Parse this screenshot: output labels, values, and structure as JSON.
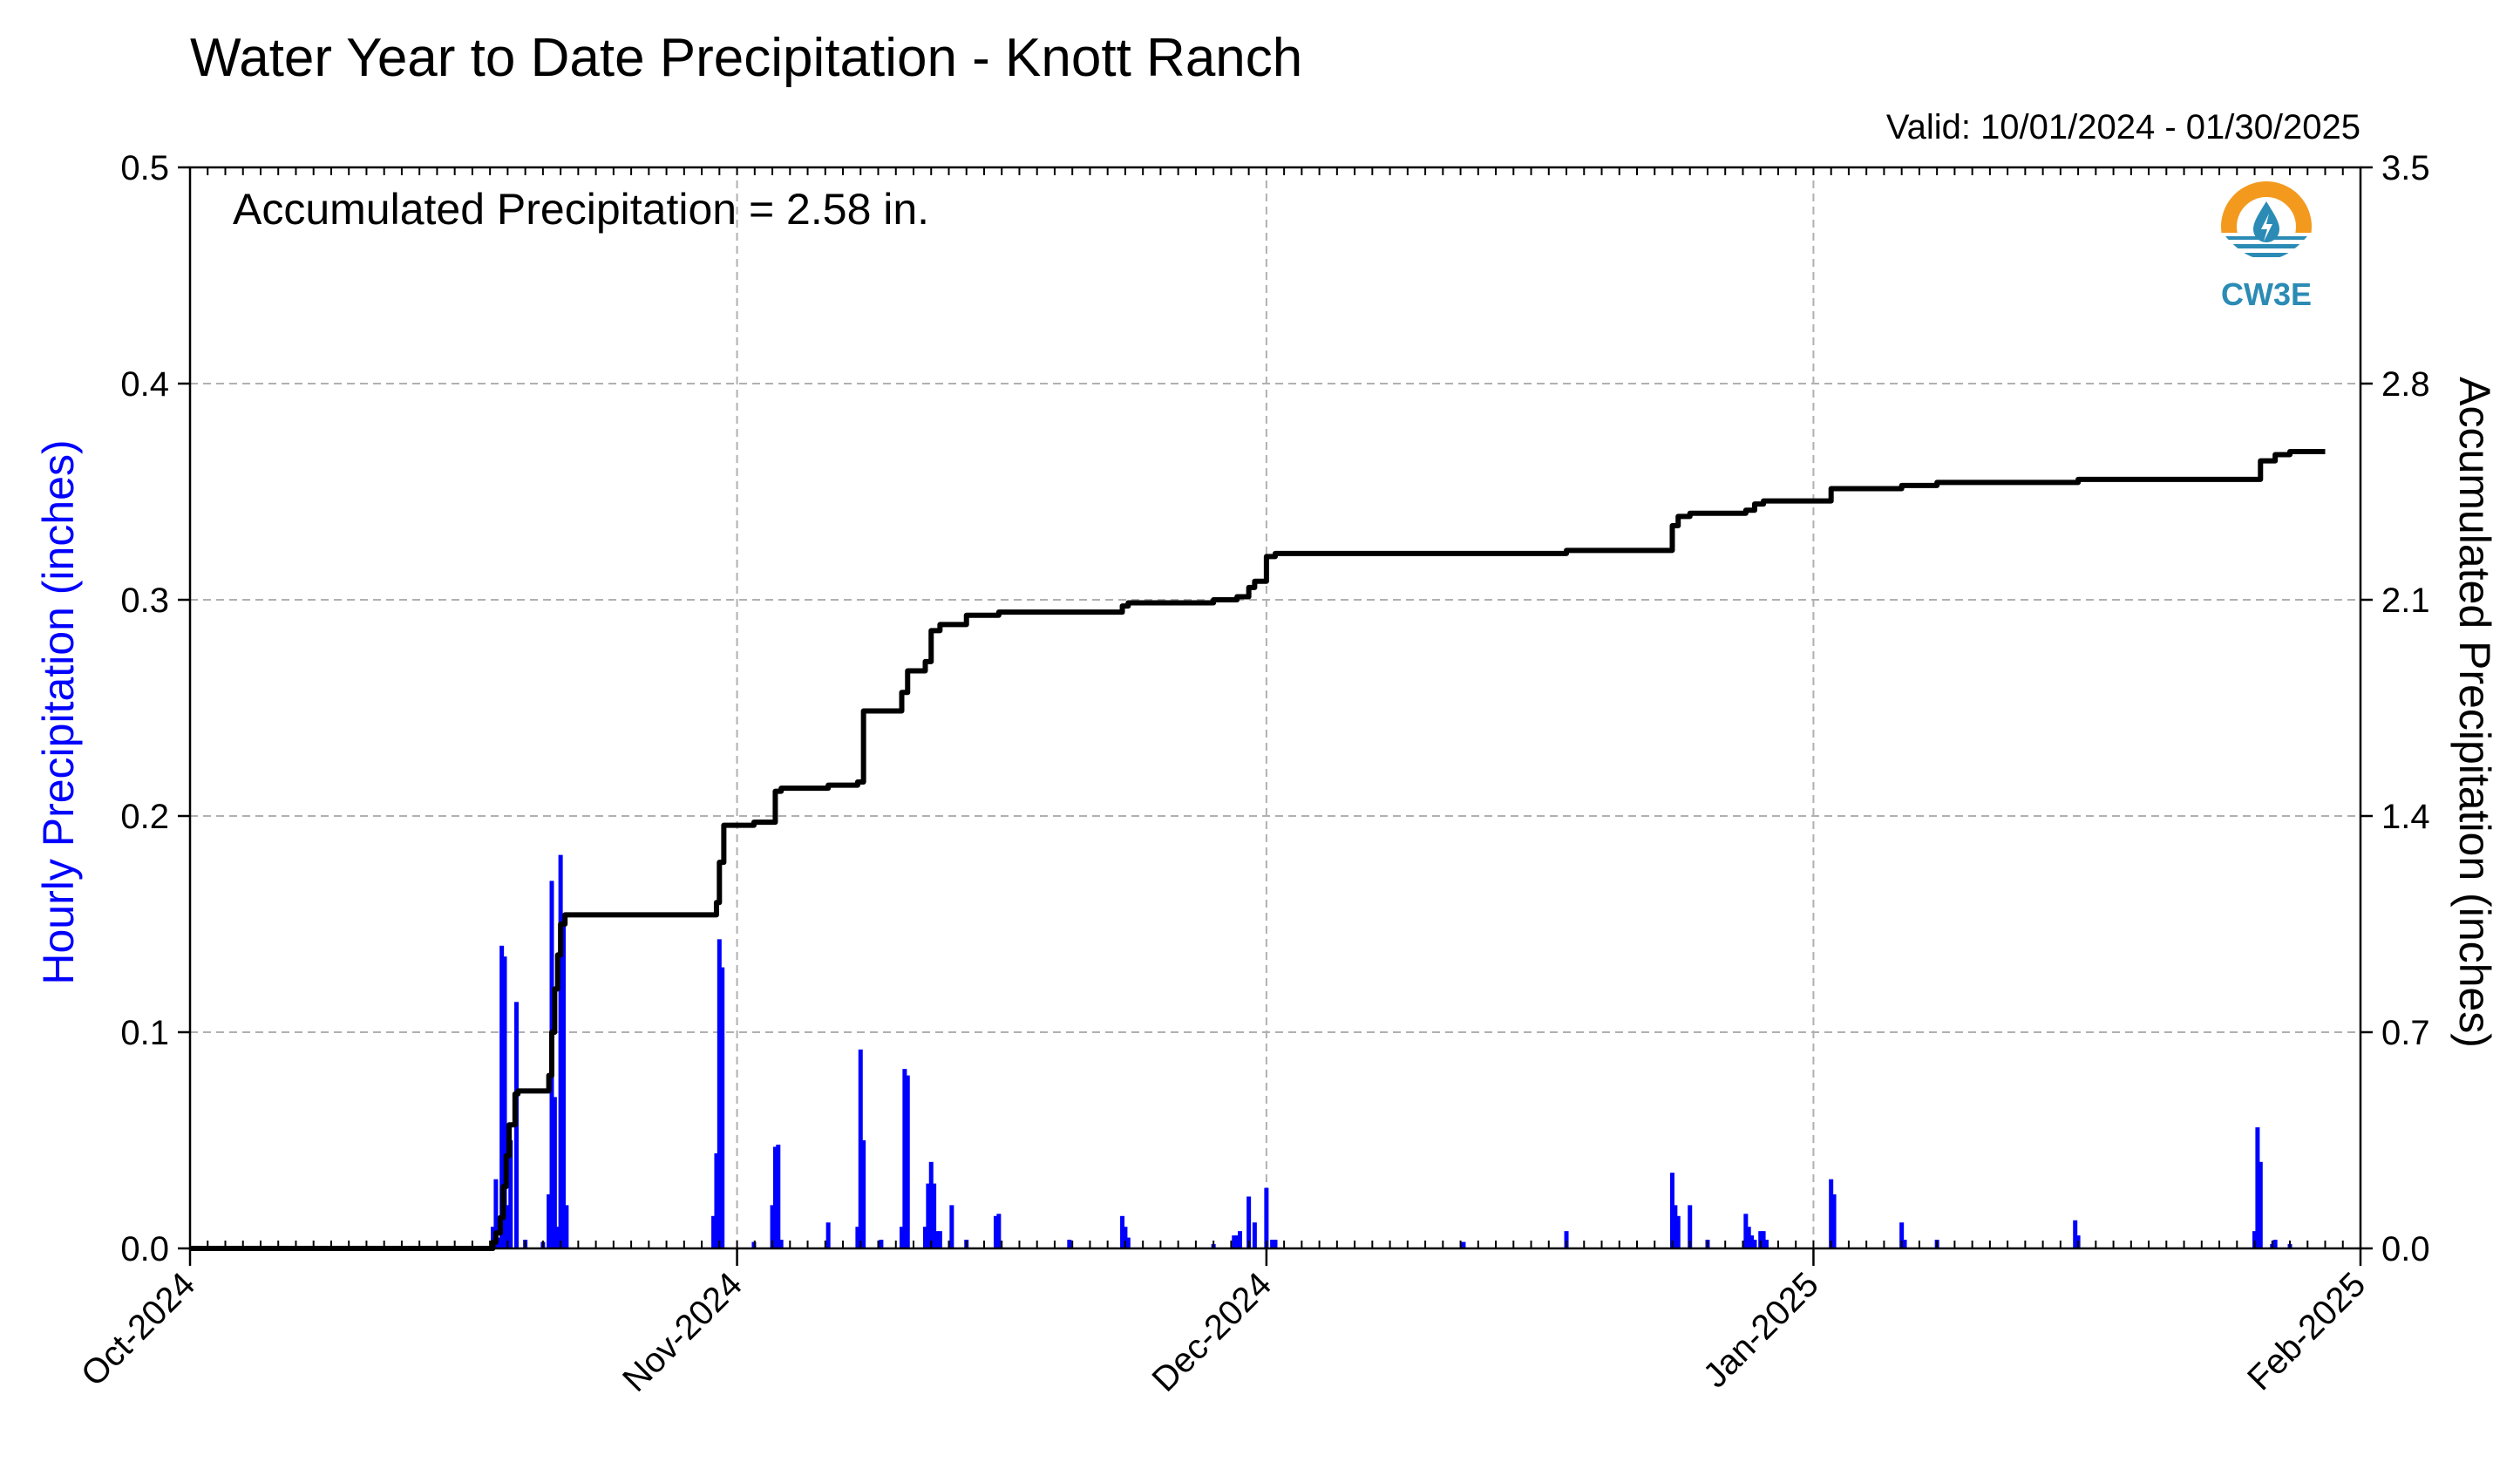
{
  "chart_data": {
    "type": "bar+line",
    "title": "Water Year to Date Precipitation - Knott Ranch",
    "valid_text": "Valid: 10/01/2024 - 01/30/2025",
    "annotation": "Accumulated Precipitation = 2.58 in.",
    "ylabel_left": "Hourly Precipitation (inches)",
    "ylabel_right": "Accumulated Precipitation (inches)",
    "xlim": [
      "2024-10-01",
      "2025-02-01"
    ],
    "ylim_left": [
      0,
      0.5
    ],
    "ylim_right": [
      0,
      3.5
    ],
    "yticks_left": [
      "0.0",
      "0.1",
      "0.2",
      "0.3",
      "0.4",
      "0.5"
    ],
    "yticks_right": [
      "0.0",
      "0.7",
      "1.4",
      "2.1",
      "2.8",
      "3.5"
    ],
    "xticks": [
      {
        "date": "2024-10-01",
        "label": "Oct-2024"
      },
      {
        "date": "2024-11-01",
        "label": "Nov-2024"
      },
      {
        "date": "2024-12-01",
        "label": "Dec-2024"
      },
      {
        "date": "2025-01-01",
        "label": "Jan-2025"
      },
      {
        "date": "2025-02-01",
        "label": "Feb-2025"
      }
    ],
    "grid": true,
    "colors": {
      "hourly": "#0000ff",
      "accumulated": "#000000",
      "left_axis_label": "#0000ff",
      "grid": "#b0b0b0"
    },
    "series": [
      {
        "name": "Hourly Precipitation",
        "kind": "bar",
        "x": [
          "2024-10-18T04:00",
          "2024-10-18T08:00",
          "2024-10-18T12:00",
          "2024-10-18T16:00",
          "2024-10-18T20:00",
          "2024-10-19T00:00",
          "2024-10-19T04:00",
          "2024-10-19T12:00",
          "2024-10-20T00:00",
          "2024-10-21T00:00",
          "2024-10-21T08:00",
          "2024-10-21T12:00",
          "2024-10-21T16:00",
          "2024-10-21T20:00",
          "2024-10-22T00:00",
          "2024-10-22T04:00",
          "2024-10-22T08:00",
          "2024-10-30T16:00",
          "2024-10-30T20:00",
          "2024-10-31T00:00",
          "2024-10-31T04:00",
          "2024-11-01T23:00",
          "2024-11-03T00:00",
          "2024-11-03T04:00",
          "2024-11-03T08:00",
          "2024-11-03T12:00",
          "2024-11-06T04:00",
          "2024-11-07T20:00",
          "2024-11-08T00:00",
          "2024-11-08T04:00",
          "2024-11-09T04:00",
          "2024-11-10T08:00",
          "2024-11-10T12:00",
          "2024-11-10T16:00",
          "2024-11-11T16:00",
          "2024-11-11T20:00",
          "2024-11-12T00:00",
          "2024-11-12T04:00",
          "2024-11-12T08:00",
          "2024-11-12T12:00",
          "2024-11-13T04:00",
          "2024-11-14T00:00",
          "2024-11-15T16:00",
          "2024-11-15T20:00",
          "2024-11-19T20:00",
          "2024-11-22T20:00",
          "2024-11-23T00:00",
          "2024-11-23T04:00",
          "2024-11-28T00:00",
          "2024-11-29T04:00",
          "2024-11-29T08:00",
          "2024-11-29T12:00",
          "2024-11-30T00:00",
          "2024-11-30T08:00",
          "2024-12-01T00:00",
          "2024-12-01T08:00",
          "2024-12-01T12:00",
          "2024-12-12T04:00",
          "2024-12-18T00:00",
          "2024-12-24T00:00",
          "2024-12-24T04:00",
          "2024-12-24T08:00",
          "2024-12-25T00:00",
          "2024-12-26T00:00",
          "2024-12-28T04:00",
          "2024-12-28T08:00",
          "2024-12-28T12:00",
          "2024-12-28T16:00",
          "2024-12-29T00:00",
          "2024-12-29T04:00",
          "2024-12-29T08:00",
          "2025-01-02T00:00",
          "2025-01-02T04:00",
          "2025-01-06T00:00",
          "2025-01-06T04:00",
          "2025-01-08T00:00",
          "2025-01-15T20:00",
          "2025-01-16T00:00",
          "2025-01-26T00:00",
          "2025-01-26T04:00",
          "2025-01-26T08:00",
          "2025-01-27T00:00",
          "2025-01-27T04:00",
          "2025-01-28T00:00"
        ],
        "values": [
          0.01,
          0.032,
          0.005,
          0.14,
          0.135,
          0.02,
          0.05,
          0.114,
          0.004,
          0.003,
          0.025,
          0.17,
          0.07,
          0.01,
          0.182,
          0.155,
          0.02,
          0.015,
          0.044,
          0.143,
          0.13,
          0.003,
          0.02,
          0.047,
          0.048,
          0.004,
          0.012,
          0.01,
          0.092,
          0.05,
          0.004,
          0.01,
          0.083,
          0.08,
          0.01,
          0.03,
          0.04,
          0.03,
          0.008,
          0.008,
          0.02,
          0.004,
          0.015,
          0.016,
          0.004,
          0.015,
          0.01,
          0.005,
          0.002,
          0.006,
          0.006,
          0.008,
          0.024,
          0.012,
          0.028,
          0.004,
          0.004,
          0.003,
          0.008,
          0.035,
          0.02,
          0.015,
          0.02,
          0.004,
          0.016,
          0.01,
          0.006,
          0.004,
          0.008,
          0.008,
          0.004,
          0.032,
          0.025,
          0.012,
          0.004,
          0.004,
          0.013,
          0.006,
          0.008,
          0.056,
          0.04,
          0.002,
          0.004,
          0.002
        ]
      },
      {
        "name": "Accumulated Precipitation",
        "kind": "step-line",
        "x": [
          "2024-10-01",
          "2024-10-18T04:00",
          "2024-10-18T08:00",
          "2024-10-18T14:00",
          "2024-10-18T18:00",
          "2024-10-18T22:00",
          "2024-10-19T02:00",
          "2024-10-19T10:00",
          "2024-10-19T14:00",
          "2024-10-20T00:00",
          "2024-10-21T00:00",
          "2024-10-21T08:00",
          "2024-10-21T12:00",
          "2024-10-21T16:00",
          "2024-10-21T20:00",
          "2024-10-22T00:00",
          "2024-10-22T06:00",
          "2024-10-30T16:00",
          "2024-10-30T20:00",
          "2024-10-31T00:00",
          "2024-10-31T06:00",
          "2024-11-01T23:00",
          "2024-11-03T04:00",
          "2024-11-03T12:00",
          "2024-11-06T04:00",
          "2024-11-07T20:00",
          "2024-11-08T04:00",
          "2024-11-09T04:00",
          "2024-11-10T08:00",
          "2024-11-10T16:00",
          "2024-11-11T16:00",
          "2024-11-12T00:00",
          "2024-11-12T12:00",
          "2024-11-14T00:00",
          "2024-11-15T20:00",
          "2024-11-19T20:00",
          "2024-11-22T20:00",
          "2024-11-23T04:00",
          "2024-11-28T00:00",
          "2024-11-29T08:00",
          "2024-11-30T00:00",
          "2024-11-30T08:00",
          "2024-12-01T00:00",
          "2024-12-01T12:00",
          "2024-12-12T04:00",
          "2024-12-18T00:00",
          "2024-12-24T00:00",
          "2024-12-24T08:00",
          "2024-12-25T00:00",
          "2024-12-26T00:00",
          "2024-12-28T04:00",
          "2024-12-28T16:00",
          "2024-12-29T04:00",
          "2025-01-02T00:00",
          "2025-01-06T00:00",
          "2025-01-08T00:00",
          "2025-01-16T00:00",
          "2025-01-26T00:00",
          "2025-01-26T08:00",
          "2025-01-27T04:00",
          "2025-01-28T00:00",
          "2025-01-30T00:00"
        ],
        "values": [
          0,
          0.02,
          0.05,
          0.1,
          0.2,
          0.3,
          0.4,
          0.5,
          0.51,
          0.51,
          0.51,
          0.56,
          0.7,
          0.84,
          0.95,
          1.05,
          1.08,
          1.08,
          1.12,
          1.25,
          1.37,
          1.38,
          1.48,
          1.49,
          1.5,
          1.51,
          1.74,
          1.74,
          1.8,
          1.87,
          1.9,
          2.0,
          2.02,
          2.05,
          2.06,
          2.06,
          2.08,
          2.09,
          2.1,
          2.11,
          2.14,
          2.16,
          2.24,
          2.25,
          2.25,
          2.26,
          2.34,
          2.37,
          2.38,
          2.38,
          2.39,
          2.41,
          2.42,
          2.46,
          2.47,
          2.48,
          2.49,
          2.49,
          2.55,
          2.57,
          2.58,
          2.58
        ]
      }
    ]
  },
  "logo": {
    "text": "CW3E"
  }
}
